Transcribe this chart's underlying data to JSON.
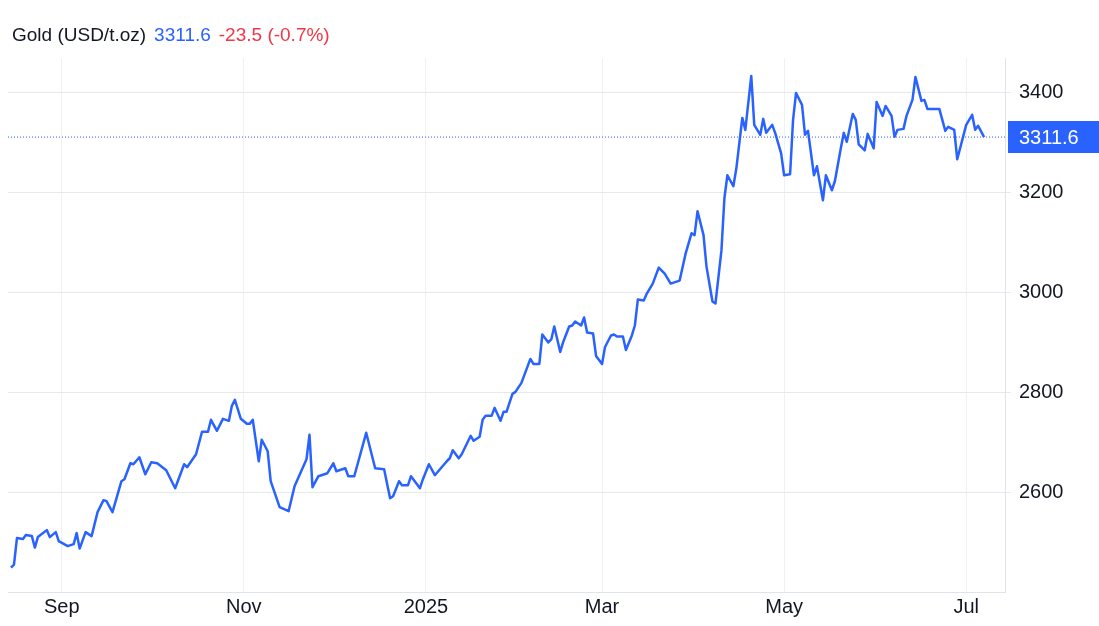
{
  "chart_data": {
    "type": "line",
    "title": "Gold (USD/t.oz)",
    "annotations": [
      "3311.6",
      "-23.5 (-0.7%)"
    ],
    "x": [
      "2024-08-15",
      "2024-08-16",
      "2024-08-17",
      "2024-08-19",
      "2024-08-20",
      "2024-08-22",
      "2024-08-23",
      "2024-08-24",
      "2024-08-27",
      "2024-08-28",
      "2024-08-30",
      "2024-08-31",
      "2024-09-03",
      "2024-09-05",
      "2024-09-06",
      "2024-09-07",
      "2024-09-09",
      "2024-09-11",
      "2024-09-13",
      "2024-09-15",
      "2024-09-16",
      "2024-09-18",
      "2024-09-21",
      "2024-09-22",
      "2024-09-24",
      "2024-09-25",
      "2024-09-27",
      "2024-09-29",
      "2024-10-01",
      "2024-10-03",
      "2024-10-06",
      "2024-10-09",
      "2024-10-12",
      "2024-10-13",
      "2024-10-16",
      "2024-10-18",
      "2024-10-20",
      "2024-10-21",
      "2024-10-23",
      "2024-10-25",
      "2024-10-27",
      "2024-10-28",
      "2024-10-29",
      "2024-10-31",
      "2024-11-02",
      "2024-11-03",
      "2024-11-04",
      "2024-11-06",
      "2024-11-07",
      "2024-11-09",
      "2024-11-10",
      "2024-11-13",
      "2024-11-16",
      "2024-11-18",
      "2024-11-22",
      "2024-11-23",
      "2024-11-24",
      "2024-11-26",
      "2024-11-29",
      "2024-12-01",
      "2024-12-02",
      "2024-12-05",
      "2024-12-06",
      "2024-12-08",
      "2024-12-12",
      "2024-12-15",
      "2024-12-18",
      "2024-12-20",
      "2024-12-21",
      "2024-12-23",
      "2024-12-24",
      "2024-12-26",
      "2024-12-27",
      "2024-12-30",
      "2024-12-31",
      "2025-01-02",
      "2025-01-04",
      "2025-01-08",
      "2025-01-09",
      "2025-01-10",
      "2025-01-12",
      "2025-01-13",
      "2025-01-16",
      "2025-01-17",
      "2025-01-19",
      "2025-01-20",
      "2025-01-21",
      "2025-01-23",
      "2025-01-24",
      "2025-01-26",
      "2025-01-27",
      "2025-01-28",
      "2025-01-30",
      "2025-01-31",
      "2025-02-02",
      "2025-02-05",
      "2025-02-06",
      "2025-02-08",
      "2025-02-09",
      "2025-02-11",
      "2025-02-12",
      "2025-02-13",
      "2025-02-15",
      "2025-02-16",
      "2025-02-18",
      "2025-02-19",
      "2025-02-20",
      "2025-02-22",
      "2025-02-23",
      "2025-02-24",
      "2025-02-26",
      "2025-02-27",
      "2025-03-01",
      "2025-03-02",
      "2025-03-04",
      "2025-03-05",
      "2025-03-06",
      "2025-03-08",
      "2025-03-09",
      "2025-03-11",
      "2025-03-12",
      "2025-03-13",
      "2025-03-15",
      "2025-03-16",
      "2025-03-18",
      "2025-03-20",
      "2025-03-22",
      "2025-03-24",
      "2025-03-27",
      "2025-03-29",
      "2025-03-31",
      "2025-04-01",
      "2025-04-02",
      "2025-04-04",
      "2025-04-05",
      "2025-04-07",
      "2025-04-08",
      "2025-04-10",
      "2025-04-11",
      "2025-04-12",
      "2025-04-14",
      "2025-04-15",
      "2025-04-17",
      "2025-04-18",
      "2025-04-20",
      "2025-04-21",
      "2025-04-23",
      "2025-04-24",
      "2025-04-25",
      "2025-04-27",
      "2025-04-28",
      "2025-04-30",
      "2025-05-01",
      "2025-05-03",
      "2025-05-04",
      "2025-05-05",
      "2025-05-07",
      "2025-05-08",
      "2025-05-09",
      "2025-05-11",
      "2025-05-12",
      "2025-05-14",
      "2025-05-15",
      "2025-05-17",
      "2025-05-18",
      "2025-05-20",
      "2025-05-21",
      "2025-05-22",
      "2025-05-24",
      "2025-05-25",
      "2025-05-26",
      "2025-05-28",
      "2025-05-29",
      "2025-05-31",
      "2025-06-01",
      "2025-06-03",
      "2025-06-04",
      "2025-06-06",
      "2025-06-07",
      "2025-06-08",
      "2025-06-10",
      "2025-06-11",
      "2025-06-13",
      "2025-06-14",
      "2025-06-16",
      "2025-06-17",
      "2025-06-18",
      "2025-06-22",
      "2025-06-24",
      "2025-06-25",
      "2025-06-27",
      "2025-06-28",
      "2025-07-01",
      "2025-07-03",
      "2025-07-04",
      "2025-07-05",
      "2025-07-07"
    ],
    "values": [
      2449,
      2455,
      2508,
      2506,
      2514,
      2512,
      2489,
      2510,
      2524,
      2510,
      2520,
      2502,
      2492,
      2496,
      2518,
      2487,
      2520,
      2512,
      2560,
      2584,
      2582,
      2560,
      2622,
      2626,
      2658,
      2656,
      2670,
      2636,
      2660,
      2658,
      2644,
      2608,
      2656,
      2650,
      2676,
      2721,
      2721,
      2745,
      2723,
      2747,
      2743,
      2773,
      2785,
      2747,
      2737,
      2737,
      2745,
      2662,
      2705,
      2682,
      2622,
      2570,
      2562,
      2612,
      2666,
      2715,
      2610,
      2632,
      2638,
      2658,
      2642,
      2648,
      2632,
      2632,
      2719,
      2648,
      2646,
      2588,
      2592,
      2622,
      2614,
      2614,
      2632,
      2608,
      2626,
      2656,
      2634,
      2662,
      2668,
      2684,
      2668,
      2676,
      2713,
      2703,
      2711,
      2745,
      2753,
      2753,
      2769,
      2743,
      2761,
      2761,
      2797,
      2801,
      2819,
      2867,
      2857,
      2857,
      2916,
      2900,
      2906,
      2932,
      2881,
      2901,
      2932,
      2934,
      2942,
      2934,
      2950,
      2920,
      2918,
      2873,
      2857,
      2891,
      2914,
      2916,
      2912,
      2912,
      2885,
      2914,
      2934,
      2986,
      2984,
      2998,
      3018,
      3050,
      3038,
      3018,
      3024,
      3078,
      3119,
      3115,
      3163,
      3115,
      3052,
      2982,
      2978,
      3084,
      3189,
      3235,
      3213,
      3249,
      3350,
      3326,
      3434,
      3336,
      3316,
      3348,
      3320,
      3336,
      3320,
      3279,
      3235,
      3237,
      3346,
      3400,
      3376,
      3316,
      3324,
      3235,
      3253,
      3185,
      3235,
      3205,
      3223,
      3289,
      3320,
      3302,
      3358,
      3346,
      3297,
      3285,
      3318,
      3289,
      3382,
      3354,
      3374,
      3354,
      3312,
      3326,
      3328,
      3354,
      3386,
      3432,
      3384,
      3386,
      3368,
      3368,
      3324,
      3332,
      3326,
      3267,
      3336,
      3356,
      3326,
      3334,
      3311.6
    ],
    "color": "#2962ff",
    "xlim": [
      "2024-08-14",
      "2025-07-14"
    ],
    "xticks": [
      {
        "value": "2024-09-01",
        "label": "Sep"
      },
      {
        "value": "2024-11-01",
        "label": "Nov"
      },
      {
        "value": "2025-01-01",
        "label": "2025"
      },
      {
        "value": "2025-03-01",
        "label": "Mar"
      },
      {
        "value": "2025-05-01",
        "label": "May"
      },
      {
        "value": "2025-07-01",
        "label": "Jul"
      }
    ],
    "ylim": [
      2400,
      3470
    ],
    "yticks": [
      2600,
      2800,
      3000,
      3200,
      3400
    ],
    "ref_lines": [
      {
        "axis": "y",
        "value": 3311.6,
        "label": "3311.6",
        "color": "#2962ff",
        "line_style": "dotted"
      }
    ],
    "grid": true,
    "marker": "none",
    "line_style": "solid"
  }
}
